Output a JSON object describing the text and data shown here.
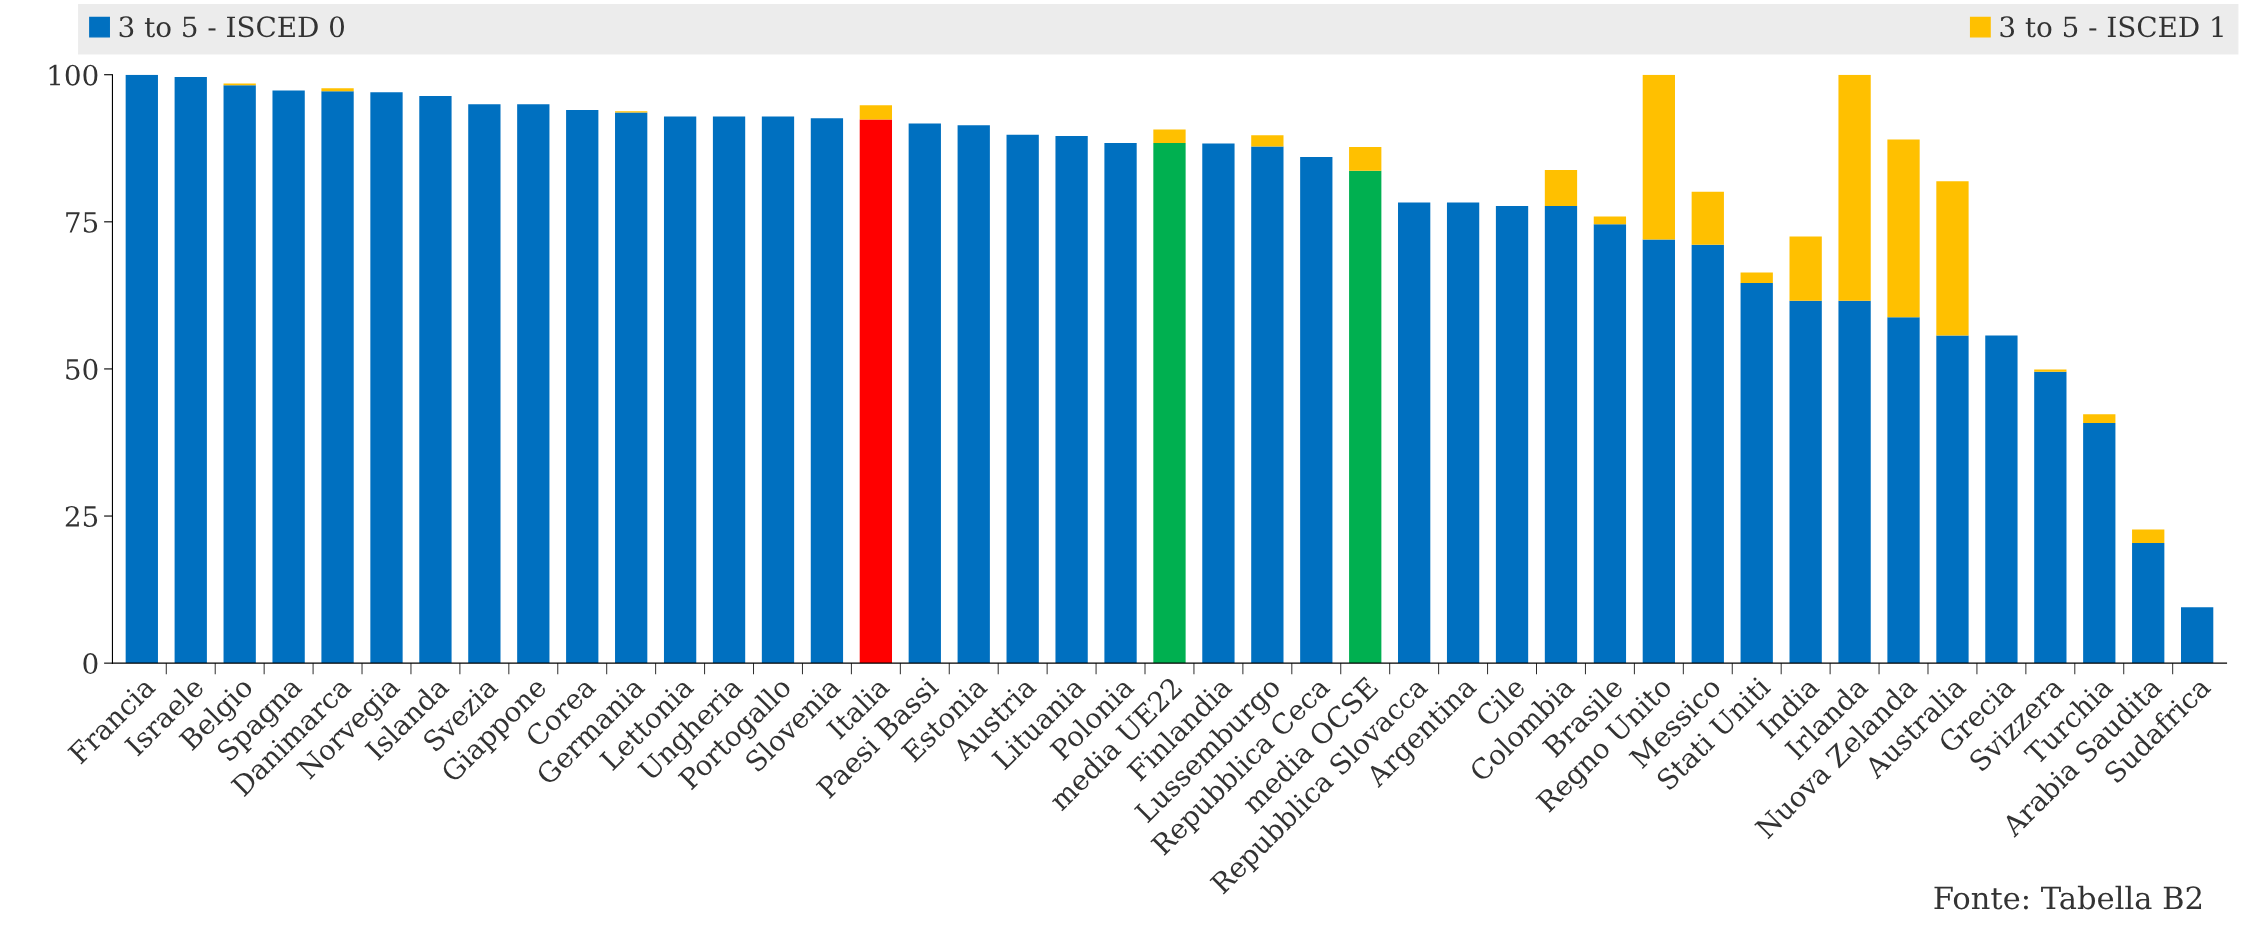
{
  "chart_data": {
    "type": "bar",
    "stacked": true,
    "categories": [
      "Francia",
      "Israele",
      "Belgio",
      "Spagna",
      "Danimarca",
      "Norvegia",
      "Islanda",
      "Svezia",
      "Giappone",
      "Corea",
      "Germania",
      "Lettonia",
      "Ungheria",
      "Portogallo",
      "Slovenia",
      "Italia",
      "Paesi Bassi",
      "Estonia",
      "Austria",
      "Lituania",
      "Polonia",
      "media UE22",
      "Finlandia",
      "Lussemburgo",
      "Repubblica Ceca",
      "media OCSE",
      "Repubblica Slovacca",
      "Argentina",
      "Cile",
      "Colombia",
      "Brasile",
      "Regno Unito",
      "Messico",
      "Stati Uniti",
      "India",
      "Irlanda",
      "Nuova Zelanda",
      "Australia",
      "Grecia",
      "Svizzera",
      "Turchia",
      "Arabia Saudita",
      "Sudafrica"
    ],
    "series": [
      {
        "name": "3 to 5 - ISCED 0",
        "color": "#0070c0",
        "colors": [
          "#0070c0",
          "#0070c0",
          "#0070c0",
          "#0070c0",
          "#0070c0",
          "#0070c0",
          "#0070c0",
          "#0070c0",
          "#0070c0",
          "#0070c0",
          "#0070c0",
          "#0070c0",
          "#0070c0",
          "#0070c0",
          "#0070c0",
          "#ff0000",
          "#0070c0",
          "#0070c0",
          "#0070c0",
          "#0070c0",
          "#0070c0",
          "#00b050",
          "#0070c0",
          "#0070c0",
          "#0070c0",
          "#00b050",
          "#0070c0",
          "#0070c0",
          "#0070c0",
          "#0070c0",
          "#0070c0",
          "#0070c0",
          "#0070c0",
          "#0070c0",
          "#0070c0",
          "#0070c0",
          "#0070c0",
          "#0070c0",
          "#0070c0",
          "#0070c0",
          "#0070c0",
          "#0070c0",
          "#0070c0"
        ],
        "values": [
          100,
          99.6,
          98.2,
          97.3,
          97.2,
          97.0,
          96.4,
          95.0,
          95.0,
          94.0,
          93.6,
          92.9,
          92.9,
          92.9,
          92.6,
          92.4,
          91.7,
          91.4,
          89.8,
          89.6,
          88.4,
          88.4,
          88.3,
          87.8,
          86.0,
          83.7,
          78.3,
          78.3,
          77.7,
          77.7,
          74.6,
          72.0,
          71.1,
          64.6,
          61.6,
          61.6,
          58.8,
          55.7,
          55.7,
          49.5,
          40.8,
          20.4,
          9.5
        ]
      },
      {
        "name": "3 to 5 - ISCED 1",
        "color": "#ffc000",
        "values": [
          0,
          0,
          0.3,
          0,
          0.5,
          0,
          0,
          0,
          0,
          0,
          0.2,
          0,
          0,
          null,
          0,
          2.4,
          0,
          0,
          0,
          0,
          0,
          2.3,
          0,
          1.9,
          0,
          4.0,
          0,
          null,
          0,
          6.1,
          1.3,
          28.0,
          9.0,
          1.8,
          10.9,
          38.4,
          30.2,
          26.2,
          0,
          0.4,
          1.5,
          2.3,
          0
        ]
      }
    ],
    "ylim": [
      0,
      100
    ],
    "yticks": [
      0,
      25,
      50,
      75,
      100
    ],
    "grid": false,
    "legend": "top",
    "annotations": [
      "Fonte: Tabella B2"
    ]
  }
}
